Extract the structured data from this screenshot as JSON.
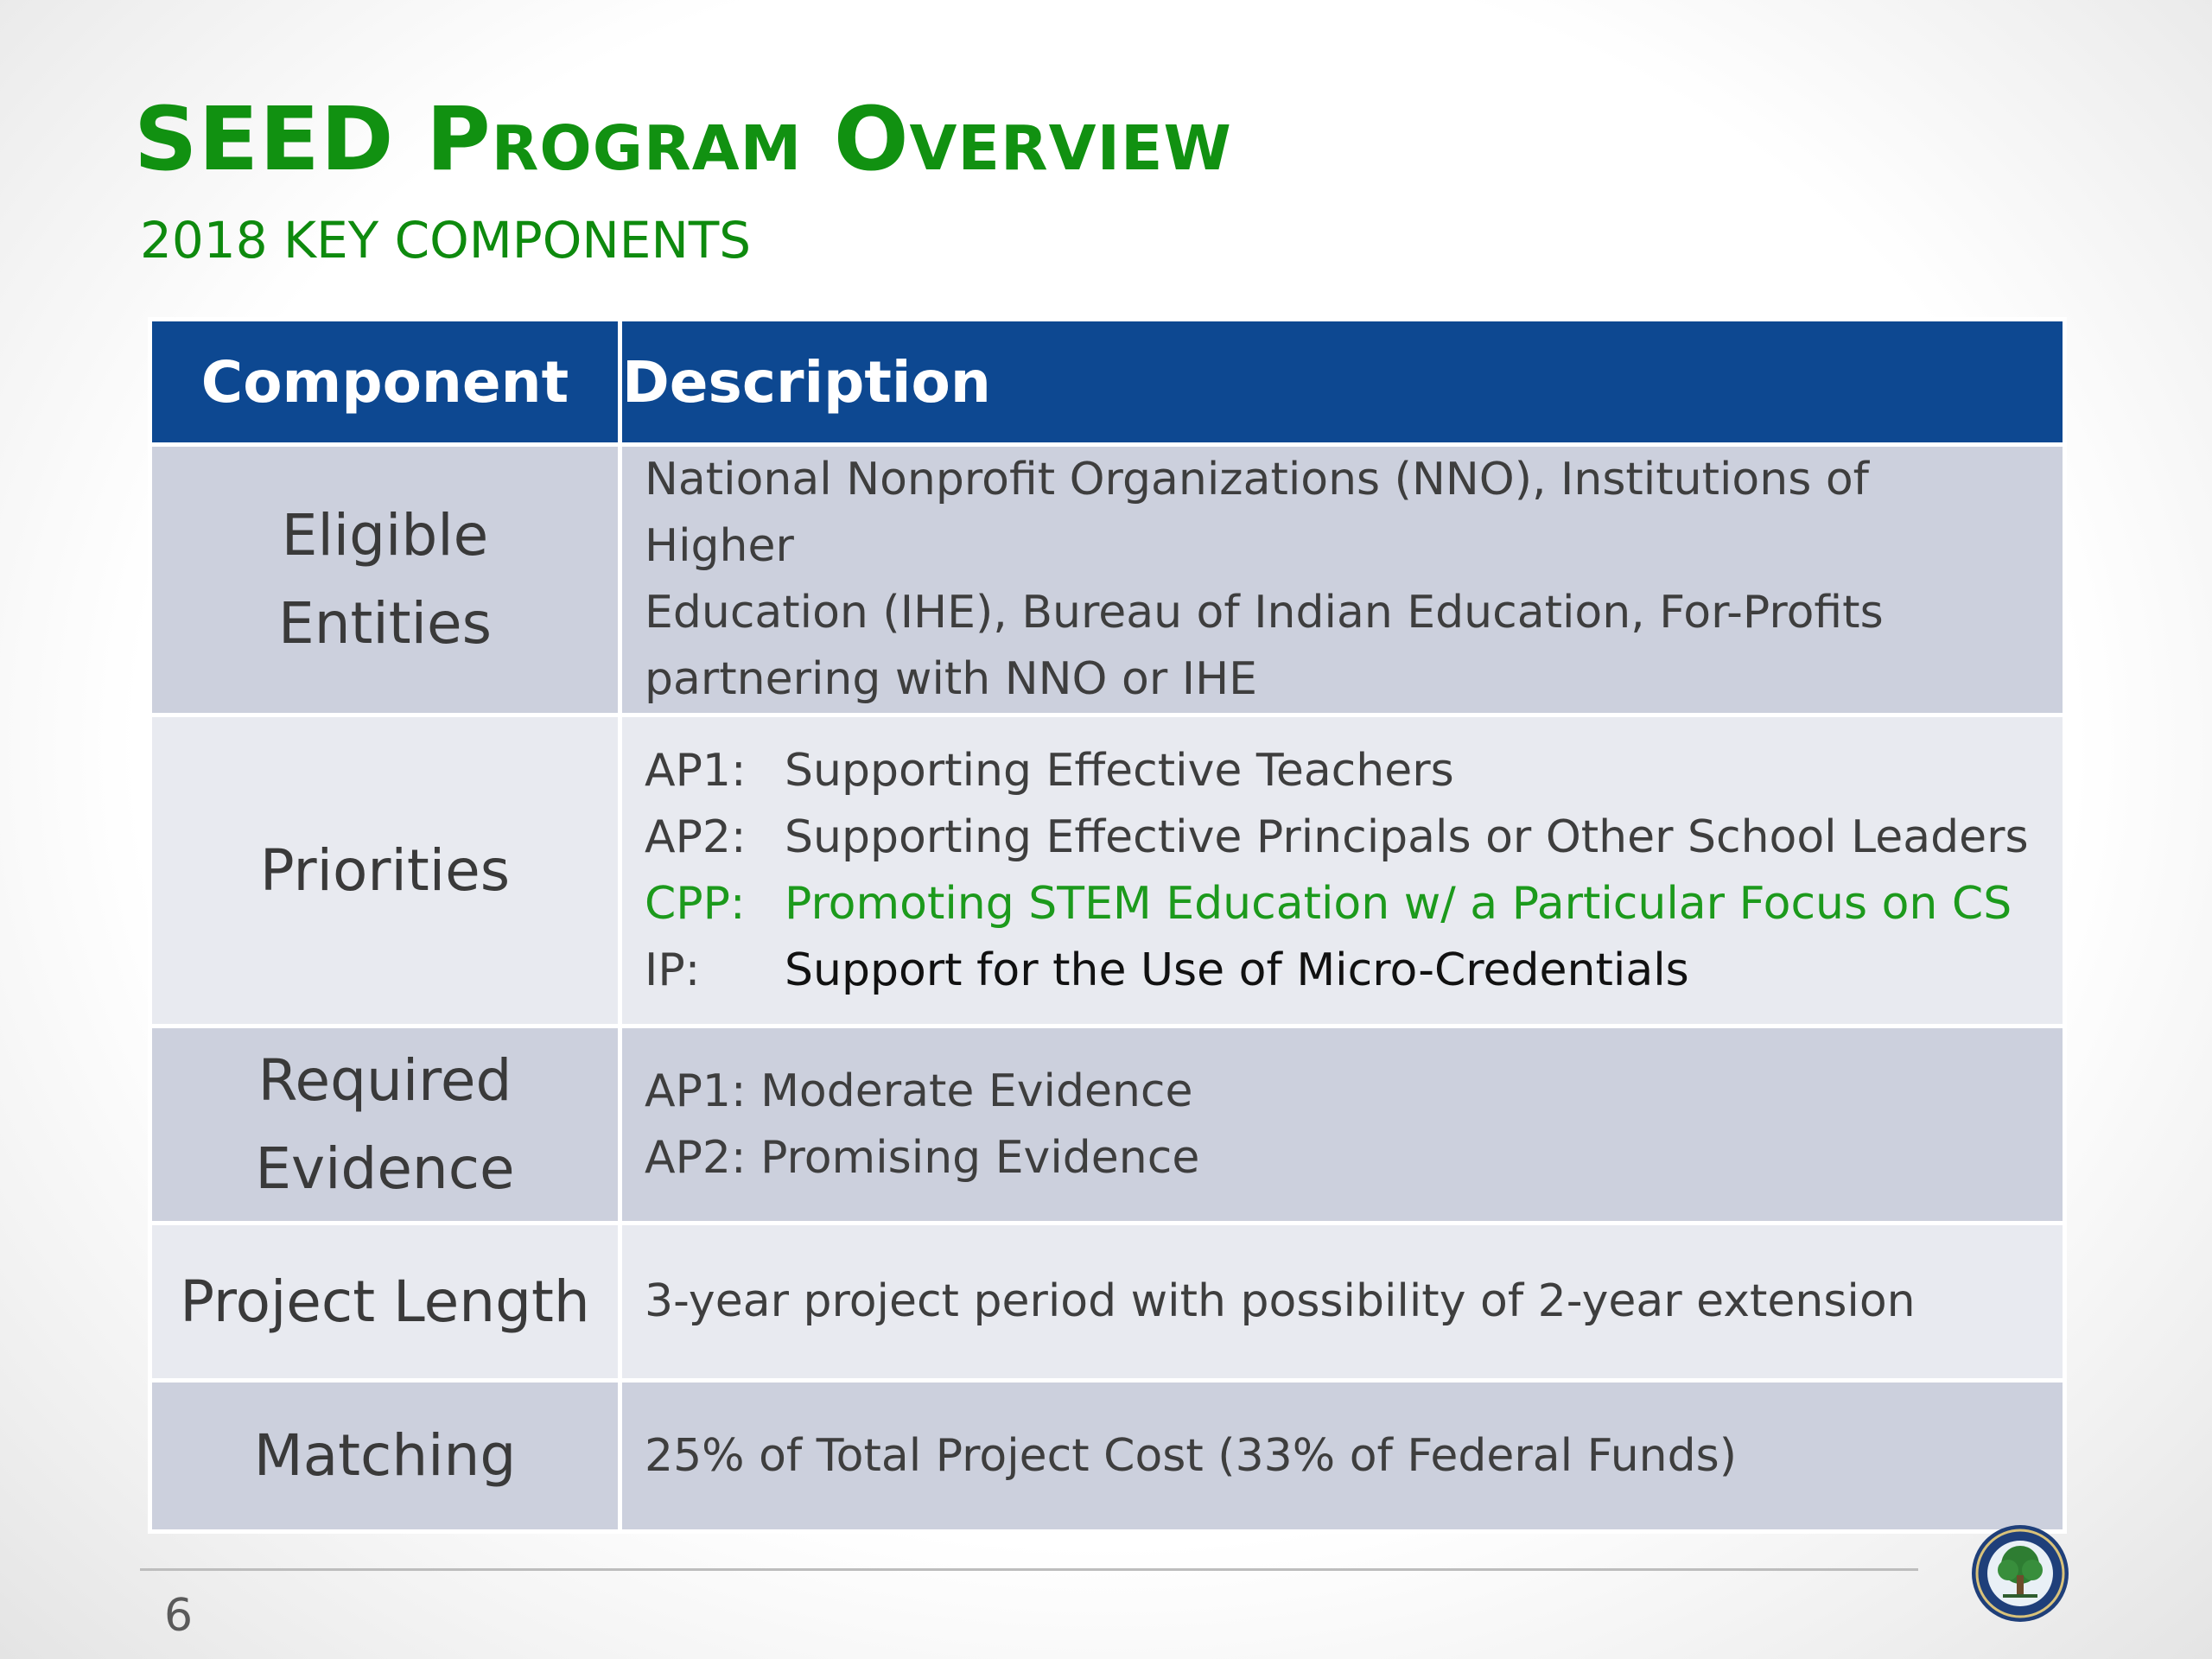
{
  "slide": {
    "title": "SEED Program Overview",
    "subtitle": "2018 KEY COMPONENTS",
    "page_number": "6"
  },
  "table": {
    "headers": {
      "component": "Component",
      "description": "Description"
    },
    "rows": {
      "eligible": {
        "component_line1": "Eligible",
        "component_line2": "Entities",
        "line1": "National Nonprofit Organizations (NNO), Institutions of Higher",
        "line2": "Education (IHE), Bureau of Indian Education, For-Profits",
        "line3": "partnering with NNO or IHE"
      },
      "priorities": {
        "component": "Priorities",
        "items": [
          {
            "code": "AP1:",
            "text": "Supporting Effective Teachers"
          },
          {
            "code": "AP2:",
            "text": "Supporting Effective Principals or Other School Leaders"
          },
          {
            "code": "CPP:",
            "text": "Promoting STEM Education w/ a Particular Focus on CS"
          },
          {
            "code": "IP:",
            "text": "Support for the Use of Micro-Credentials"
          }
        ]
      },
      "evidence": {
        "component_line1": "Required",
        "component_line2": "Evidence",
        "line1": "AP1: Moderate Evidence",
        "line2": "AP2: Promising Evidence"
      },
      "length": {
        "component": "Project Length",
        "description": "3-year project period with possibility of 2-year extension"
      },
      "matching": {
        "component": "Matching",
        "description": "25% of Total Project Cost (33% of Federal Funds)"
      }
    }
  },
  "colors": {
    "title_green": "#119111",
    "header_blue": "#0d4891",
    "row_dark": "#ccd0dd",
    "row_light": "#e8eaf0",
    "cpp_green": "#1c9a1c"
  },
  "logo": {
    "icon": "department-of-education-seal-icon"
  }
}
